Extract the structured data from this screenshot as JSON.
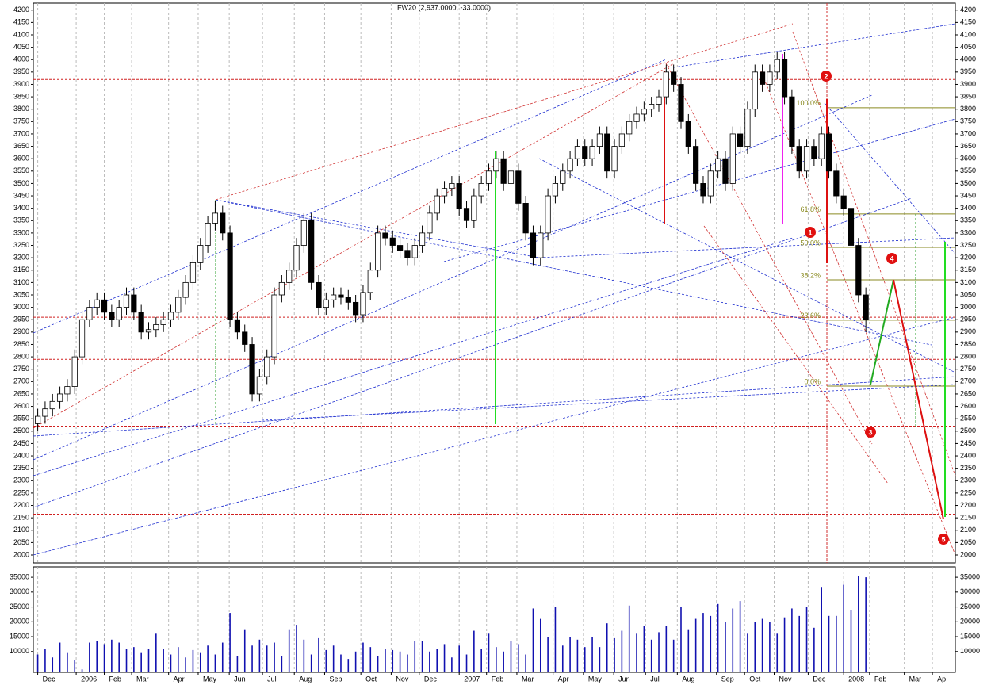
{
  "chart_data": {
    "type": "candlestick",
    "title": "FW20 (2,937.0000, -33.0000)",
    "xlim": [
      -0.6,
      124.1
    ],
    "xticks": [
      {
        "value": 0,
        "label": "Dec"
      },
      {
        "value": 5.2,
        "label": "2006"
      },
      {
        "value": 9,
        "label": "Feb"
      },
      {
        "value": 12.7,
        "label": "Mar"
      },
      {
        "value": 17.7,
        "label": "Apr"
      },
      {
        "value": 21.7,
        "label": "May"
      },
      {
        "value": 25.9,
        "label": "Jun"
      },
      {
        "value": 30.4,
        "label": "Jul"
      },
      {
        "value": 34.7,
        "label": "Aug"
      },
      {
        "value": 38.8,
        "label": "Sep"
      },
      {
        "value": 43.7,
        "label": "Oct"
      },
      {
        "value": 47.8,
        "label": "Nov"
      },
      {
        "value": 51.6,
        "label": "Dec"
      },
      {
        "value": 57,
        "label": "2007"
      },
      {
        "value": 60.7,
        "label": "Feb"
      },
      {
        "value": 64.8,
        "label": "Mar"
      },
      {
        "value": 69.7,
        "label": "Apr"
      },
      {
        "value": 73.8,
        "label": "May"
      },
      {
        "value": 77.9,
        "label": "Jun"
      },
      {
        "value": 82.2,
        "label": "Jul"
      },
      {
        "value": 86.5,
        "label": "Aug"
      },
      {
        "value": 91.8,
        "label": "Sep"
      },
      {
        "value": 95.6,
        "label": "Oct"
      },
      {
        "value": 99.6,
        "label": "Nov"
      },
      {
        "value": 104.2,
        "label": "Dec"
      },
      {
        "value": 109,
        "label": "2008"
      },
      {
        "value": 112.5,
        "label": "Feb"
      },
      {
        "value": 117.2,
        "label": "Mar"
      },
      {
        "value": 121,
        "label": "Ap"
      }
    ],
    "ylim": [
      1968,
      4228
    ],
    "yticks": [
      2000,
      2050,
      2100,
      2150,
      2200,
      2250,
      2300,
      2350,
      2400,
      2450,
      2500,
      2550,
      2600,
      2650,
      2700,
      2750,
      2800,
      2850,
      2900,
      2950,
      3000,
      3050,
      3100,
      3150,
      3200,
      3250,
      3300,
      3350,
      3400,
      3450,
      3500,
      3550,
      3600,
      3650,
      3700,
      3750,
      3800,
      3850,
      3900,
      3950,
      4000,
      4050,
      4100,
      4150,
      4200
    ],
    "open": [
      2530,
      2560,
      2590,
      2620,
      2650,
      2680,
      2800,
      2950,
      3000,
      3030,
      2980,
      2950,
      3000,
      3050,
      2980,
      2900,
      2910,
      2930,
      2950,
      2980,
      3040,
      3100,
      3180,
      3250,
      3340,
      3380,
      3300,
      2950,
      2900,
      2850,
      2650,
      2720,
      2800,
      3050,
      3100,
      3150,
      3250,
      3350,
      3100,
      3000,
      3030,
      3050,
      3040,
      3020,
      2970,
      3060,
      3150,
      3300,
      3280,
      3250,
      3230,
      3200,
      3250,
      3300,
      3380,
      3450,
      3480,
      3500,
      3400,
      3350,
      3450,
      3500,
      3550,
      3600,
      3500,
      3550,
      3420,
      3300,
      3200,
      3300,
      3450,
      3500,
      3550,
      3600,
      3650,
      3600,
      3650,
      3700,
      3550,
      3650,
      3700,
      3750,
      3780,
      3800,
      3820,
      3850,
      3950,
      3900,
      3750,
      3650,
      3500,
      3450,
      3550,
      3600,
      3500,
      3700,
      3650,
      3800,
      3950,
      3900,
      3950,
      4000,
      3850,
      3650,
      3550,
      3650,
      3600,
      3700,
      3550,
      3450,
      3400,
      3250,
      3050
    ],
    "high": [
      2590,
      2620,
      2650,
      2680,
      2710,
      2830,
      2980,
      3030,
      3060,
      3060,
      3010,
      3030,
      3080,
      3080,
      3010,
      2940,
      2960,
      2980,
      3010,
      3070,
      3130,
      3210,
      3280,
      3370,
      3430,
      3410,
      3330,
      2980,
      2930,
      2880,
      2750,
      2830,
      3080,
      3130,
      3180,
      3280,
      3380,
      3380,
      3130,
      3060,
      3080,
      3080,
      3070,
      3050,
      3090,
      3180,
      3330,
      3330,
      3310,
      3280,
      3260,
      3280,
      3330,
      3410,
      3480,
      3510,
      3530,
      3530,
      3430,
      3480,
      3530,
      3580,
      3630,
      3630,
      3580,
      3580,
      3450,
      3330,
      3330,
      3480,
      3530,
      3580,
      3630,
      3680,
      3680,
      3680,
      3730,
      3730,
      3680,
      3730,
      3780,
      3810,
      3830,
      3850,
      3880,
      3980,
      3980,
      3930,
      3780,
      3680,
      3530,
      3580,
      3630,
      3630,
      3730,
      3730,
      3830,
      3980,
      3980,
      3980,
      4030,
      4030,
      3880,
      3680,
      3680,
      3680,
      3730,
      3730,
      3580,
      3480,
      3430,
      3280,
      3080
    ],
    "low": [
      2500,
      2530,
      2560,
      2590,
      2620,
      2650,
      2770,
      2920,
      2970,
      2950,
      2920,
      2920,
      2970,
      2950,
      2870,
      2870,
      2880,
      2900,
      2920,
      2950,
      3010,
      3070,
      3150,
      3220,
      3310,
      3270,
      2920,
      2870,
      2820,
      2620,
      2620,
      2690,
      2770,
      3020,
      3070,
      3120,
      3220,
      3070,
      2970,
      2970,
      3000,
      3010,
      2990,
      2940,
      2940,
      3030,
      3120,
      3250,
      3220,
      3200,
      3170,
      3170,
      3220,
      3270,
      3350,
      3420,
      3450,
      3370,
      3320,
      3320,
      3420,
      3470,
      3520,
      3470,
      3470,
      3390,
      3270,
      3170,
      3170,
      3270,
      3420,
      3470,
      3520,
      3570,
      3570,
      3570,
      3620,
      3520,
      3520,
      3620,
      3670,
      3720,
      3750,
      3770,
      3790,
      3820,
      3870,
      3720,
      3620,
      3470,
      3420,
      3420,
      3520,
      3470,
      3470,
      3620,
      3620,
      3770,
      3870,
      3870,
      3920,
      3820,
      3620,
      3520,
      3520,
      3570,
      3570,
      3520,
      3420,
      3370,
      3220,
      3020,
      2900
    ],
    "close": [
      2560,
      2590,
      2620,
      2650,
      2680,
      2800,
      2950,
      3000,
      3030,
      2980,
      2950,
      3000,
      3050,
      2980,
      2900,
      2910,
      2930,
      2950,
      2980,
      3040,
      3100,
      3180,
      3250,
      3340,
      3380,
      3300,
      2950,
      2900,
      2850,
      2650,
      2720,
      2800,
      3050,
      3100,
      3150,
      3250,
      3350,
      3100,
      3000,
      3030,
      3050,
      3040,
      3020,
      2970,
      3060,
      3150,
      3300,
      3280,
      3250,
      3230,
      3200,
      3250,
      3300,
      3380,
      3450,
      3480,
      3500,
      3400,
      3350,
      3450,
      3500,
      3550,
      3600,
      3500,
      3550,
      3420,
      3300,
      3200,
      3300,
      3450,
      3500,
      3550,
      3600,
      3650,
      3600,
      3650,
      3700,
      3550,
      3650,
      3700,
      3750,
      3780,
      3800,
      3820,
      3850,
      3950,
      3900,
      3750,
      3650,
      3500,
      3450,
      3550,
      3600,
      3500,
      3700,
      3650,
      3800,
      3950,
      3900,
      3950,
      4000,
      3850,
      3650,
      3550,
      3650,
      3600,
      3700,
      3550,
      3450,
      3400,
      3250,
      3050,
      2950
    ],
    "volume": [
      9000,
      11000,
      8000,
      13000,
      9500,
      7000,
      4000,
      13000,
      13500,
      12500,
      14000,
      13000,
      11000,
      11500,
      9500,
      11000,
      16000,
      11000,
      9000,
      11500,
      8000,
      10500,
      9500,
      12000,
      9000,
      13000,
      23000,
      8500,
      17500,
      12000,
      14000,
      12000,
      13000,
      8500,
      17500,
      19000,
      14000,
      9000,
      14500,
      10500,
      12000,
      9000,
      7500,
      10000,
      13000,
      11500,
      8500,
      11000,
      10500,
      10000,
      9000,
      13500,
      13500,
      10000,
      11000,
      12500,
      8000,
      12000,
      9000,
      17000,
      11000,
      16000,
      11500,
      10000,
      13500,
      12500,
      9000,
      24500,
      21000,
      15000,
      25000,
      12000,
      15000,
      14000,
      11500,
      15000,
      11500,
      19500,
      14500,
      17000,
      25500,
      16000,
      18500,
      14000,
      16500,
      18500,
      14000,
      25000,
      17500,
      21000,
      23000,
      22000,
      26000,
      20000,
      24500,
      27000,
      16000,
      20000,
      21000,
      20000,
      16000,
      21500,
      24500,
      22000,
      25000,
      18000,
      31500,
      22000,
      22000,
      32500,
      24000,
      35500,
      35000
    ],
    "volume_ylim": [
      3000,
      38500
    ],
    "volume_yticks": [
      10000,
      15000,
      20000,
      25000,
      30000,
      35000
    ],
    "levels": [
      3920,
      2960,
      2790,
      2520,
      2165
    ],
    "fibonacci": [
      {
        "label": "100.0%",
        "value": 3806
      },
      {
        "label": "61.8%",
        "value": 3377
      },
      {
        "label": "50.0%",
        "value": 3242
      },
      {
        "label": "38.2%",
        "value": 3111
      },
      {
        "label": "23.6%",
        "value": 2948
      },
      {
        "label": "0.0%",
        "value": 2682
      }
    ],
    "wave_labels": [
      "1",
      "2",
      "3",
      "4",
      "5"
    ],
    "volume_color": "#1010b0",
    "level_color": "#d02020",
    "fib_color": "#8a8a20"
  }
}
